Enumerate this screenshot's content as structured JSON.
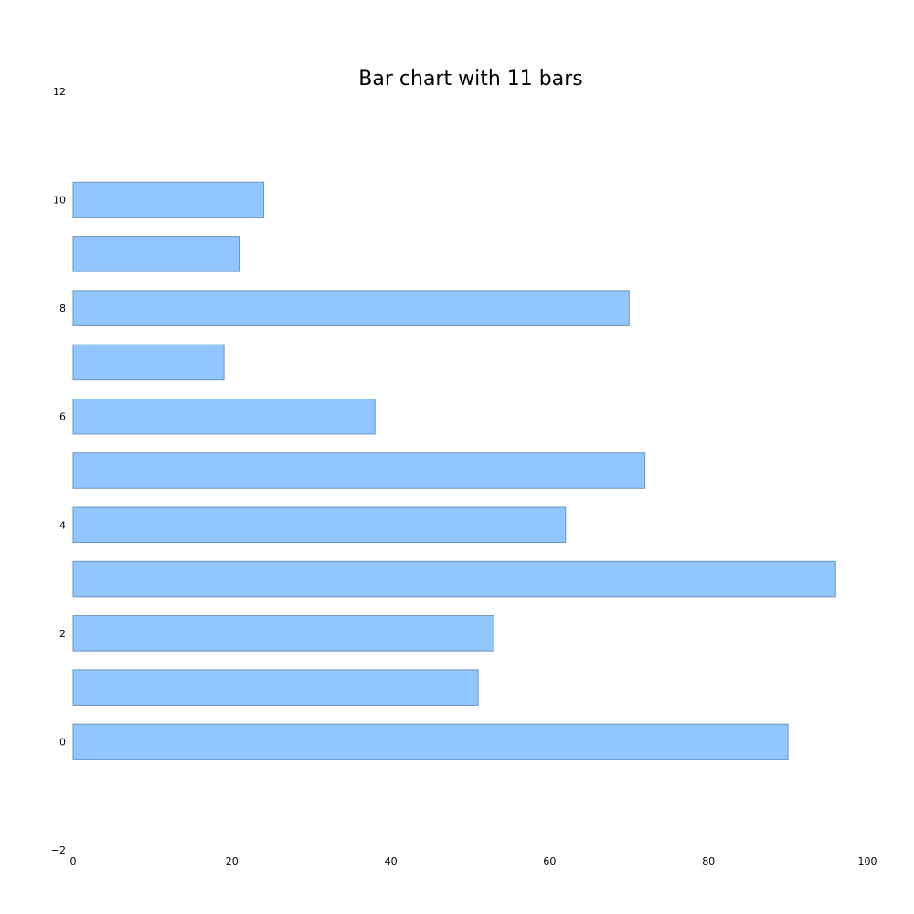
{
  "chart_data": {
    "type": "bar",
    "orientation": "horizontal",
    "title": "Bar chart with 11 bars",
    "xlabel": "",
    "ylabel": "",
    "categories": [
      0,
      1,
      2,
      3,
      4,
      5,
      6,
      7,
      8,
      9,
      10
    ],
    "values": [
      90,
      51,
      53,
      96,
      62,
      72,
      38,
      19,
      70,
      21,
      24
    ],
    "xlim": [
      0,
      100
    ],
    "ylim": [
      -2,
      12
    ],
    "xticks": [
      0,
      20,
      40,
      60,
      80,
      100
    ],
    "xtick_labels": [
      "0",
      "20",
      "40",
      "60",
      "80",
      "100"
    ],
    "yticks": [
      -2,
      0,
      2,
      4,
      6,
      8,
      10,
      12
    ],
    "ytick_labels": [
      "−2",
      "0",
      "2",
      "4",
      "6",
      "8",
      "10",
      "12"
    ],
    "grid": false,
    "axes_visible": false,
    "bar_color": "#92c6ff",
    "bar_edge_color": "#6d94bf"
  }
}
